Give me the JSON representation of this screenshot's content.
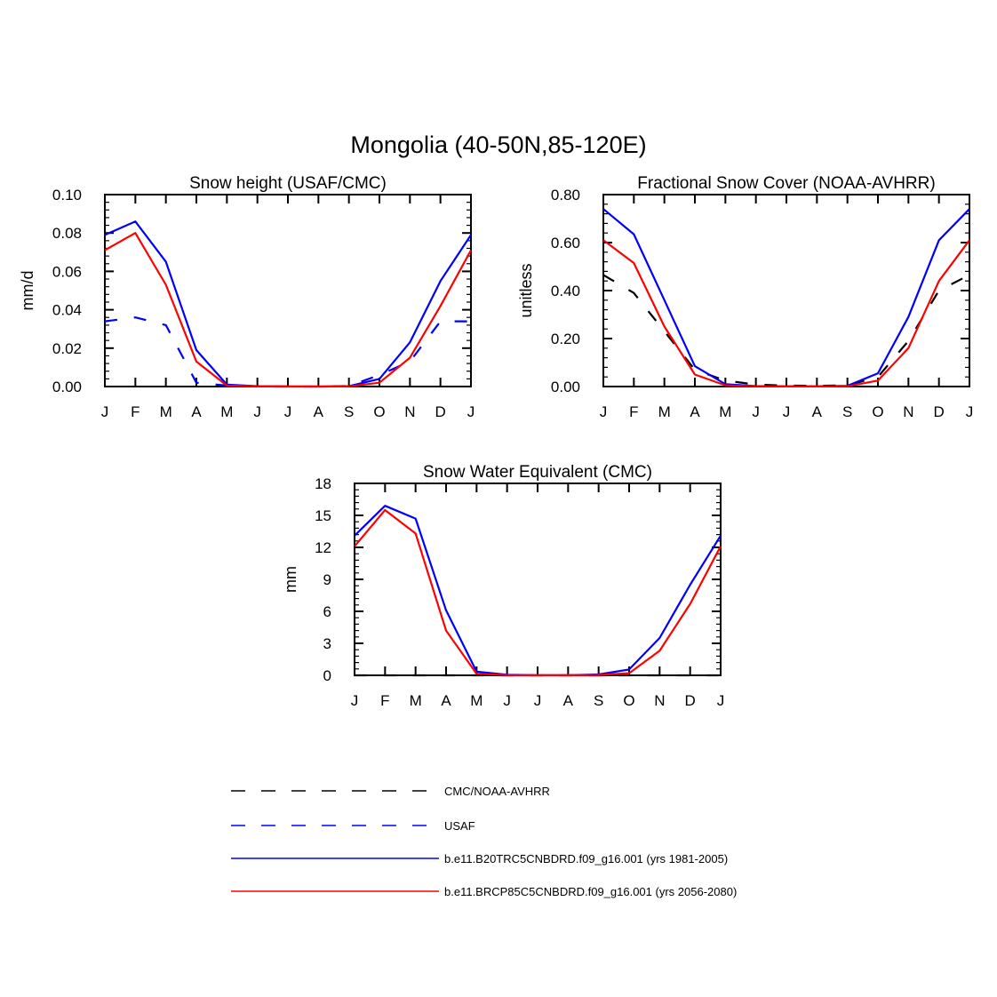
{
  "figure": {
    "title": "Mongolia (40-50N,85-120E)"
  },
  "legend": {
    "entries": [
      {
        "label": "CMC/NOAA-AVHRR",
        "color": "#000000",
        "dashed": true
      },
      {
        "label": "USAF",
        "color": "#0000ff",
        "dashed": true
      },
      {
        "label": "b.e11.B20TRC5CNBDRD.f09_g16.001 (yrs 1981-2005)",
        "color": "#0000ff",
        "dashed": false
      },
      {
        "label": "b.e11.BRCP85C5CNBDRD.f09_g16.001 (yrs 2056-2080)",
        "color": "#ff0000",
        "dashed": false
      }
    ]
  },
  "chart_data": [
    {
      "type": "line",
      "title": "Snow height (USAF/CMC)",
      "xlabel": "",
      "ylabel": "mm/d",
      "categories": [
        "J",
        "F",
        "M",
        "A",
        "M",
        "J",
        "J",
        "A",
        "S",
        "O",
        "N",
        "D",
        "J"
      ],
      "ylim": [
        0,
        0.1
      ],
      "yticks": [
        0,
        0.02,
        0.04,
        0.06,
        0.08,
        0.1
      ],
      "ytick_labels": [
        "0.00",
        "0.02",
        "0.04",
        "0.06",
        "0.08",
        "0.10"
      ],
      "series": [
        {
          "name": "USAF",
          "color": "#0000ff",
          "dashed": true,
          "values": [
            0.034,
            0.036,
            0.032,
            0.002,
            0.0005,
            0,
            0,
            0,
            0.0003,
            0.006,
            0.013,
            0.034,
            0.034
          ]
        },
        {
          "name": "b.e11.B20TRC5CNBDRD.f09_g16.001 (yrs 1981-2005)",
          "color": "#0000ff",
          "dashed": false,
          "values": [
            0.079,
            0.086,
            0.065,
            0.019,
            0.001,
            0.0002,
            0.0001,
            0,
            0.0002,
            0.004,
            0.023,
            0.055,
            0.079
          ]
        },
        {
          "name": "b.e11.BRCP85C5CNBDRD.f09_g16.001 (yrs 2056-2080)",
          "color": "#ff0000",
          "dashed": false,
          "values": [
            0.071,
            0.08,
            0.053,
            0.013,
            0.0005,
            0.0001,
            0,
            0,
            0.0001,
            0.002,
            0.015,
            0.042,
            0.071
          ]
        }
      ]
    },
    {
      "type": "line",
      "title": "Fractional Snow Cover (NOAA-AVHRR)",
      "xlabel": "",
      "ylabel": "unitless",
      "categories": [
        "J",
        "F",
        "M",
        "A",
        "M",
        "J",
        "J",
        "A",
        "S",
        "O",
        "N",
        "D",
        "J"
      ],
      "ylim": [
        0,
        0.8
      ],
      "yticks": [
        0,
        0.2,
        0.4,
        0.6,
        0.8
      ],
      "ytick_labels": [
        "0.00",
        "0.20",
        "0.40",
        "0.60",
        "0.80"
      ],
      "series": [
        {
          "name": "CMC/NOAA-AVHRR",
          "color": "#000000",
          "dashed": true,
          "values": [
            0.465,
            0.39,
            0.23,
            0.07,
            0.025,
            0.008,
            0.004,
            0.003,
            0.005,
            0.04,
            0.19,
            0.4,
            0.465
          ]
        },
        {
          "name": "b.e11.B20TRC5CNBDRD.f09_g16.001 (yrs 1981-2005)",
          "color": "#0000ff",
          "dashed": false,
          "values": [
            0.74,
            0.635,
            0.36,
            0.085,
            0.01,
            0.002,
            0.001,
            0.001,
            0.003,
            0.055,
            0.29,
            0.61,
            0.74
          ]
        },
        {
          "name": "b.e11.BRCP85C5CNBDRD.f09_g16.001 (yrs 2056-2080)",
          "color": "#ff0000",
          "dashed": false,
          "values": [
            0.61,
            0.515,
            0.25,
            0.05,
            0.005,
            0.001,
            0.0005,
            0.0005,
            0.001,
            0.025,
            0.16,
            0.44,
            0.61
          ]
        }
      ]
    },
    {
      "type": "line",
      "title": "Snow Water Equivalent (CMC)",
      "xlabel": "",
      "ylabel": "mm",
      "categories": [
        "J",
        "F",
        "M",
        "A",
        "M",
        "J",
        "J",
        "A",
        "S",
        "O",
        "N",
        "D",
        "J"
      ],
      "ylim": [
        0,
        18
      ],
      "yticks": [
        0,
        3,
        6,
        9,
        12,
        15,
        18
      ],
      "ytick_labels": [
        "0",
        "3",
        "6",
        "9",
        "12",
        "15",
        "18"
      ],
      "series": [
        {
          "name": "CMC/NOAA-AVHRR",
          "color": "#000000",
          "dashed": true,
          "values": [
            0,
            0,
            0,
            0,
            0,
            0,
            0,
            0,
            0,
            0,
            0,
            0,
            0
          ]
        },
        {
          "name": "b.e11.B20TRC5CNBDRD.f09_g16.001 (yrs 1981-2005)",
          "color": "#0000ff",
          "dashed": false,
          "values": [
            13.1,
            15.9,
            14.7,
            6.1,
            0.35,
            0.05,
            0.02,
            0.02,
            0.08,
            0.55,
            3.5,
            8.5,
            13.1
          ]
        },
        {
          "name": "b.e11.BRCP85C5CNBDRD.f09_g16.001 (yrs 2056-2080)",
          "color": "#ff0000",
          "dashed": false,
          "values": [
            12.1,
            15.5,
            13.3,
            4.2,
            0.15,
            0.02,
            0.01,
            0.01,
            0.03,
            0.2,
            2.3,
            6.7,
            12.1
          ]
        }
      ]
    }
  ]
}
